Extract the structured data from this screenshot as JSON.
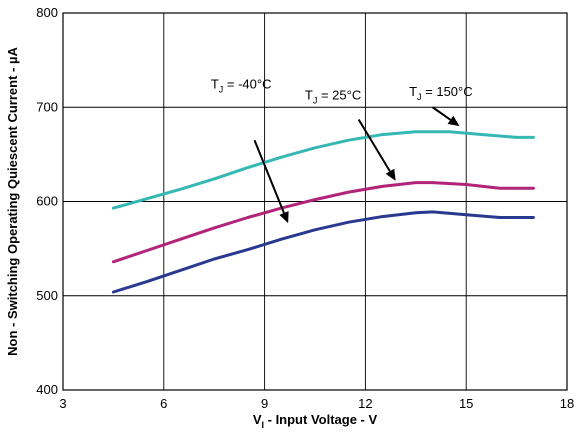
{
  "chart_data": {
    "type": "line",
    "xlabel": {
      "main": "V",
      "sub": "I",
      "rest": " - Input Voltage - V"
    },
    "ylabel": "Non - Switching Operating Quiescent Current - µA",
    "xlim": [
      3,
      18
    ],
    "ylim": [
      400,
      800
    ],
    "xticks": [
      3,
      6,
      9,
      12,
      15,
      18
    ],
    "yticks": [
      400,
      500,
      600,
      700,
      800
    ],
    "grid": true,
    "series": [
      {
        "color": "#35b8b4",
        "x": [
          4.5,
          5.5,
          6.5,
          7.5,
          8.5,
          9.5,
          10.5,
          11.5,
          12.5,
          13.5,
          14.5,
          15.5,
          16.5,
          17
        ],
        "y": [
          593,
          603,
          613,
          624,
          636,
          647,
          657,
          665,
          671,
          674,
          674,
          671,
          668,
          668
        ]
      },
      {
        "color": "#b2237a",
        "x": [
          4.5,
          5.5,
          6.5,
          7.5,
          8.5,
          9.5,
          10.5,
          11.5,
          12.5,
          13.5,
          14,
          15,
          16,
          17
        ],
        "y": [
          536,
          548,
          560,
          572,
          583,
          593,
          602,
          610,
          616,
          620,
          620,
          618,
          614,
          614
        ]
      },
      {
        "color": "#2a3990",
        "x": [
          4.5,
          5.5,
          6.5,
          7.5,
          8.5,
          9.5,
          10.5,
          11.5,
          12.5,
          13.5,
          14,
          15,
          16,
          17
        ],
        "y": [
          504,
          515,
          527,
          539,
          549,
          560,
          570,
          578,
          584,
          588,
          589,
          586,
          583,
          583
        ]
      }
    ],
    "annotations": [
      {
        "main": "T",
        "sub": "J",
        "rest": " = -40°C",
        "anchor": [
          7.4,
          720
        ],
        "arrow_from": [
          8.7,
          665
        ],
        "arrow_to": [
          9.7,
          577
        ]
      },
      {
        "main": "T",
        "sub": "J",
        "rest": " = 25°C",
        "anchor": [
          10.2,
          708
        ],
        "arrow_from": [
          11.8,
          687
        ],
        "arrow_to": [
          12.9,
          622
        ]
      },
      {
        "main": "T",
        "sub": "J",
        "rest": " = 150°C",
        "anchor": [
          13.3,
          712
        ],
        "arrow_from": [
          14.0,
          700
        ],
        "arrow_to": [
          14.8,
          680
        ]
      }
    ]
  }
}
